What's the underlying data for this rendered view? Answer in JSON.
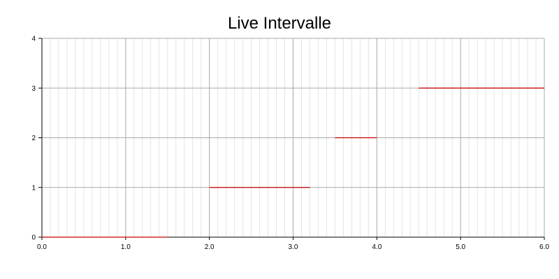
{
  "chart_data": {
    "type": "line",
    "title": "Live Intervalle",
    "xlabel": "",
    "ylabel": "",
    "xlim": [
      0,
      6
    ],
    "ylim": [
      0,
      4
    ],
    "x_ticks": [
      "0.0",
      "1.0",
      "2.0",
      "3.0",
      "4.0",
      "5.0",
      "6.0"
    ],
    "y_ticks": [
      "0",
      "1",
      "2",
      "3",
      "4"
    ],
    "grid": true,
    "line_color": "#cc0000",
    "intervals": [
      {
        "start": 0.0,
        "end": 1.5,
        "y": 0
      },
      {
        "start": 2.0,
        "end": 3.2,
        "y": 1
      },
      {
        "start": 3.5,
        "end": 4.0,
        "y": 2
      },
      {
        "start": 4.5,
        "end": 6.0,
        "y": 3
      }
    ]
  }
}
